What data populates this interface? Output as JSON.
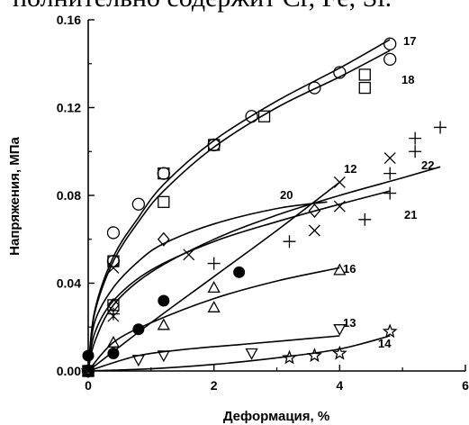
{
  "page_text": {
    "top_line": "полнительно содержит Cr, Fe, Si."
  },
  "chart_data": {
    "type": "scatter",
    "xlabel": "Деформация, %",
    "ylabel": "Напряжения, МПа",
    "xlim": [
      0,
      6
    ],
    "ylim": [
      0,
      0.16
    ],
    "x_ticks": [
      "0",
      "2",
      "4",
      "6"
    ],
    "y_ticks": [
      "0.00",
      "0.04",
      "0.08",
      "0.12",
      "0.16"
    ],
    "grid": false,
    "series": [
      {
        "name": "17",
        "marker": "circle",
        "points": [
          [
            0,
            0.0
          ],
          [
            0.4,
            0.063
          ],
          [
            0.4,
            0.05
          ],
          [
            0.8,
            0.076
          ],
          [
            1.2,
            0.09
          ],
          [
            2.0,
            0.103
          ],
          [
            2.6,
            0.116
          ],
          [
            3.6,
            0.129
          ],
          [
            4.0,
            0.136
          ],
          [
            4.8,
            0.149
          ],
          [
            4.8,
            0.142
          ]
        ],
        "fit": [
          [
            0,
            0.0
          ],
          [
            0.1,
            0.027
          ],
          [
            0.4,
            0.052
          ],
          [
            0.8,
            0.07
          ],
          [
            1.2,
            0.085
          ],
          [
            2.0,
            0.105
          ],
          [
            3.0,
            0.123
          ],
          [
            4.0,
            0.138
          ],
          [
            4.8,
            0.151
          ]
        ]
      },
      {
        "name": "18",
        "marker": "square",
        "points": [
          [
            0,
            0.0
          ],
          [
            0.4,
            0.05
          ],
          [
            0.4,
            0.03
          ],
          [
            1.2,
            0.09
          ],
          [
            1.2,
            0.077
          ],
          [
            2.0,
            0.103
          ],
          [
            2.8,
            0.116
          ],
          [
            4.4,
            0.135
          ],
          [
            4.4,
            0.129
          ]
        ],
        "fit": [
          [
            0,
            0.0
          ],
          [
            0.1,
            0.026
          ],
          [
            0.4,
            0.05
          ],
          [
            0.8,
            0.068
          ],
          [
            1.2,
            0.082
          ],
          [
            2.0,
            0.102
          ],
          [
            3.0,
            0.12
          ],
          [
            4.0,
            0.134
          ],
          [
            4.8,
            0.146
          ]
        ]
      },
      {
        "name": "12",
        "marker": "x",
        "points": [
          [
            0,
            0.0
          ],
          [
            0.4,
            0.025
          ],
          [
            0.4,
            0.047
          ],
          [
            1.6,
            0.053
          ],
          [
            3.6,
            0.064
          ],
          [
            4.0,
            0.086
          ],
          [
            4.0,
            0.075
          ],
          [
            4.8,
            0.097
          ]
        ],
        "fit": [
          [
            0,
            0.0
          ],
          [
            1.0,
            0.022
          ],
          [
            2.0,
            0.043
          ],
          [
            3.0,
            0.064
          ],
          [
            4.0,
            0.086
          ]
        ]
      },
      {
        "name": "20",
        "marker": "diamond",
        "points": [
          [
            0,
            0.0
          ],
          [
            0.4,
            0.03
          ],
          [
            1.2,
            0.06
          ],
          [
            3.6,
            0.073
          ]
        ],
        "fit": [
          [
            0,
            0.0
          ],
          [
            0.1,
            0.022
          ],
          [
            0.4,
            0.038
          ],
          [
            0.8,
            0.05
          ],
          [
            1.2,
            0.058
          ],
          [
            2.0,
            0.067
          ],
          [
            3.0,
            0.074
          ],
          [
            3.8,
            0.077
          ]
        ]
      },
      {
        "name": "22",
        "marker": "plus",
        "points": [
          [
            0,
            0.0
          ],
          [
            0.4,
            0.026
          ],
          [
            2.0,
            0.049
          ],
          [
            3.2,
            0.059
          ],
          [
            4.4,
            0.069
          ],
          [
            4.8,
            0.09
          ],
          [
            4.8,
            0.081
          ],
          [
            5.2,
            0.106
          ],
          [
            5.2,
            0.1
          ],
          [
            5.6,
            0.111
          ]
        ],
        "fit": [
          [
            0,
            0.0
          ],
          [
            0.1,
            0.013
          ],
          [
            0.4,
            0.03
          ],
          [
            1.0,
            0.045
          ],
          [
            2.0,
            0.06
          ],
          [
            3.0,
            0.071
          ],
          [
            4.0,
            0.08
          ],
          [
            5.0,
            0.088
          ],
          [
            5.6,
            0.093
          ]
        ]
      },
      {
        "name": "21",
        "marker": "plus",
        "points": [],
        "fit": [
          [
            0,
            0.0
          ],
          [
            0.1,
            0.017
          ],
          [
            0.4,
            0.032
          ],
          [
            1.0,
            0.046
          ],
          [
            2.0,
            0.059
          ],
          [
            3.0,
            0.068
          ],
          [
            4.0,
            0.076
          ],
          [
            4.8,
            0.082
          ]
        ]
      },
      {
        "name": "16",
        "marker": "triangle-up",
        "points": [
          [
            0,
            0.0
          ],
          [
            0.4,
            0.013
          ],
          [
            1.2,
            0.021
          ],
          [
            2.0,
            0.029
          ],
          [
            2.0,
            0.038
          ],
          [
            4.0,
            0.046
          ]
        ],
        "fit": [
          [
            0,
            0.0
          ],
          [
            0.4,
            0.013
          ],
          [
            1.0,
            0.022
          ],
          [
            2.0,
            0.033
          ],
          [
            3.0,
            0.041
          ],
          [
            4.0,
            0.047
          ]
        ]
      },
      {
        "name": "",
        "marker": "filled-circle",
        "points": [
          [
            0,
            0.007
          ],
          [
            0.4,
            0.008
          ],
          [
            0.8,
            0.019
          ],
          [
            1.2,
            0.032
          ],
          [
            2.4,
            0.045
          ]
        ],
        "fit": []
      },
      {
        "name": "13",
        "marker": "triangle-down",
        "points": [
          [
            0,
            0.0
          ],
          [
            0.8,
            0.005
          ],
          [
            1.2,
            0.007
          ],
          [
            2.6,
            0.008
          ],
          [
            4.0,
            0.019
          ]
        ],
        "fit": [
          [
            0,
            0.0
          ],
          [
            0.8,
            0.007
          ],
          [
            1.6,
            0.01
          ],
          [
            2.4,
            0.012
          ],
          [
            3.2,
            0.014
          ],
          [
            4.0,
            0.016
          ]
        ]
      },
      {
        "name": "14",
        "marker": "star",
        "points": [
          [
            0,
            0.0
          ],
          [
            3.2,
            0.006
          ],
          [
            3.6,
            0.007
          ],
          [
            4.0,
            0.008
          ],
          [
            4.8,
            0.018
          ]
        ],
        "fit": [
          [
            0,
            0.0
          ],
          [
            1.0,
            0.001
          ],
          [
            2.0,
            0.003
          ],
          [
            3.0,
            0.006
          ],
          [
            4.0,
            0.01
          ],
          [
            4.8,
            0.016
          ]
        ]
      }
    ]
  }
}
